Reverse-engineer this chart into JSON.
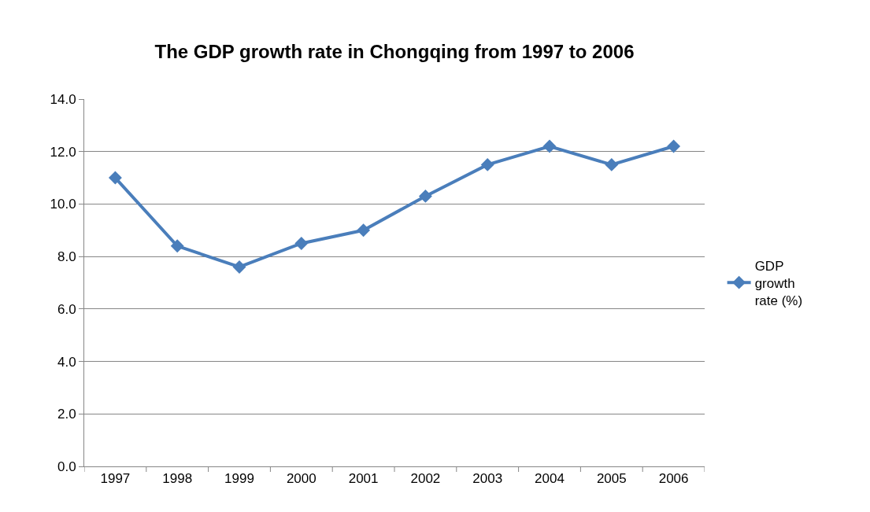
{
  "chart_data": {
    "type": "line",
    "title": "The GDP growth rate in Chongqing from 1997 to 2006",
    "categories": [
      "1997",
      "1998",
      "1999",
      "2000",
      "2001",
      "2002",
      "2003",
      "2004",
      "2005",
      "2006"
    ],
    "series": [
      {
        "name": "GDP growth rate (%)",
        "color": "#4a7ebb",
        "values": [
          11.0,
          8.4,
          7.6,
          8.5,
          9.0,
          10.3,
          11.5,
          12.2,
          11.5,
          12.2
        ]
      }
    ],
    "ylim": [
      0,
      14
    ],
    "yticks": [
      {
        "value": 0,
        "label": "0.0"
      },
      {
        "value": 2,
        "label": "2.0"
      },
      {
        "value": 4,
        "label": "4.0"
      },
      {
        "value": 6,
        "label": "6.0"
      },
      {
        "value": 8,
        "label": "8.0"
      },
      {
        "value": 10,
        "label": "10.0"
      },
      {
        "value": 12,
        "label": "12.0"
      },
      {
        "value": 14,
        "label": "14.0"
      }
    ],
    "grid": "y",
    "legend": "right",
    "marker": "diamond",
    "line_style": "solid"
  }
}
